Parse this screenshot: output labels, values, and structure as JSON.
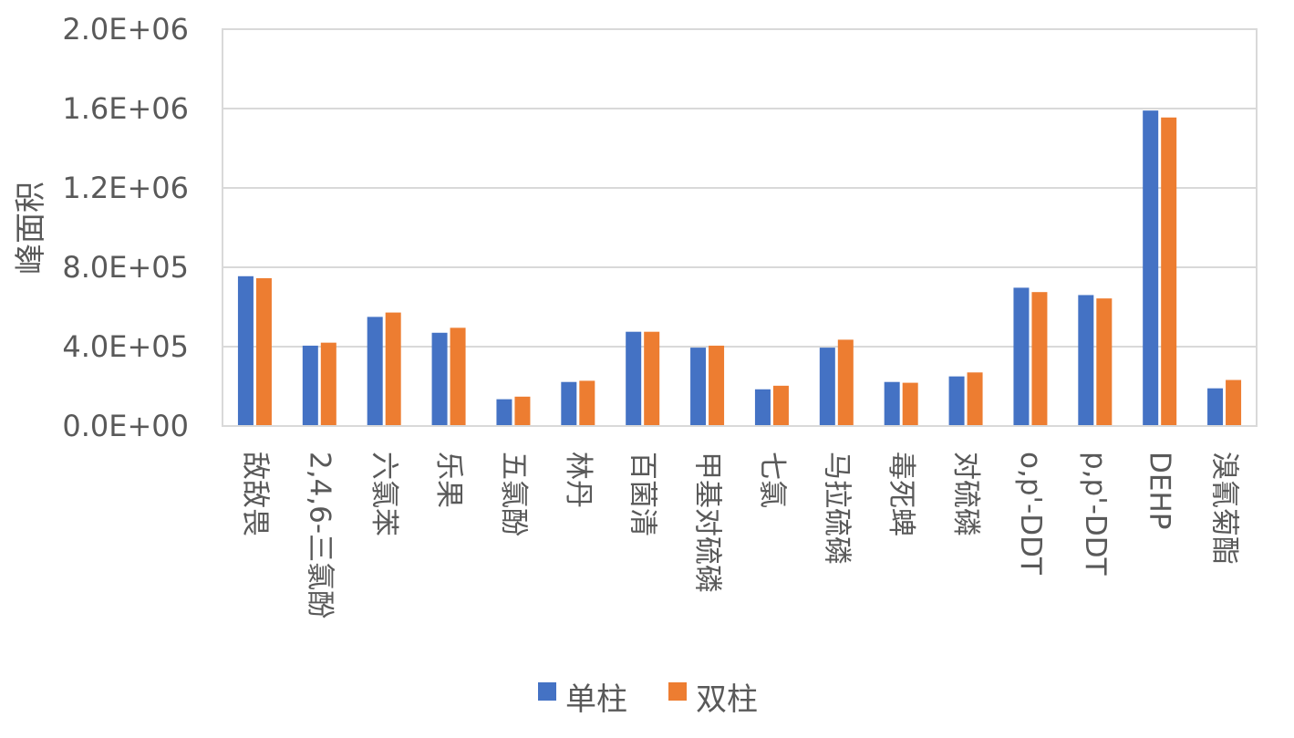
{
  "chart_data": {
    "type": "bar",
    "title": "",
    "xlabel": "",
    "ylabel": "峰面积",
    "ylim": [
      0,
      2000000
    ],
    "yticks": [
      0,
      400000,
      800000,
      1200000,
      1600000,
      2000000
    ],
    "ytick_labels": [
      "0.0E+00",
      "4.0E+05",
      "8.0E+05",
      "1.2E+06",
      "1.6E+06",
      "2.0E+06"
    ],
    "grid": true,
    "legend_position": "bottom",
    "categories": [
      "敌敌畏",
      "2,4,6-三氯酚",
      "六氯苯",
      "乐果",
      "五氯酚",
      "林丹",
      "百菌清",
      "甲基对硫磷",
      "七氯",
      "马拉硫磷",
      "毒死蜱",
      "对硫磷",
      "o,p'-DDT",
      "p,p'-DDT",
      "DEHP",
      "溴氰菊酯"
    ],
    "series": [
      {
        "name": "单柱",
        "color": "#4472C4",
        "values": [
          755000,
          405000,
          550000,
          470000,
          135000,
          222000,
          475000,
          395000,
          185000,
          395000,
          222000,
          250000,
          697000,
          660000,
          1590000,
          190000
        ]
      },
      {
        "name": "双柱",
        "color": "#ED7D31",
        "values": [
          745000,
          420000,
          572000,
          495000,
          148000,
          228000,
          475000,
          405000,
          203000,
          435000,
          218000,
          270000,
          675000,
          643000,
          1555000,
          232000
        ]
      }
    ]
  }
}
